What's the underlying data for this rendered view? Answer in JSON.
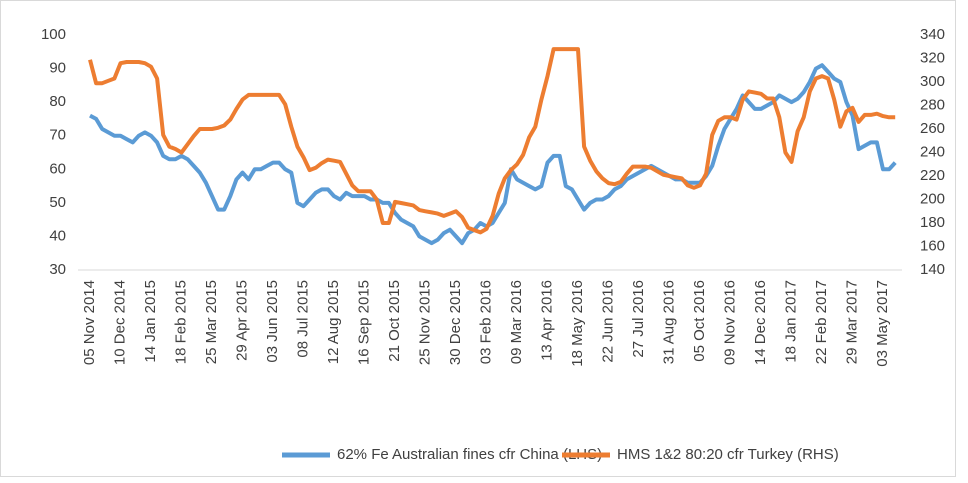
{
  "chart_data": {
    "type": "line",
    "categories": [
      "05 Nov 2014",
      null,
      null,
      null,
      null,
      "10 Dec 2014",
      null,
      null,
      null,
      null,
      "14 Jan 2015",
      null,
      null,
      null,
      null,
      "18 Feb 2015",
      null,
      null,
      null,
      null,
      "25 Mar 2015",
      null,
      null,
      null,
      null,
      "29 Apr 2015",
      null,
      null,
      null,
      null,
      "03 Jun 2015",
      null,
      null,
      null,
      null,
      "08 Jul 2015",
      null,
      null,
      null,
      null,
      "12 Aug 2015",
      null,
      null,
      null,
      null,
      "16 Sep 2015",
      null,
      null,
      null,
      null,
      "21 Oct 2015",
      null,
      null,
      null,
      null,
      "25 Nov 2015",
      null,
      null,
      null,
      null,
      "30 Dec 2015",
      null,
      null,
      null,
      null,
      "03 Feb 2016",
      null,
      null,
      null,
      null,
      "09 Mar 2016",
      null,
      null,
      null,
      null,
      "13 Apr 2016",
      null,
      null,
      null,
      null,
      "18 May 2016",
      null,
      null,
      null,
      null,
      "22 Jun 2016",
      null,
      null,
      null,
      null,
      "27 Jul 2016",
      null,
      null,
      null,
      null,
      "31 Aug 2016",
      null,
      null,
      null,
      null,
      "05 Oct 2016",
      null,
      null,
      null,
      null,
      "09 Nov 2016",
      null,
      null,
      null,
      null,
      "14 Dec 2016",
      null,
      null,
      null,
      null,
      "18 Jan 2017",
      null,
      null,
      null,
      null,
      "22 Feb 2017",
      null,
      null,
      null,
      null,
      "29 Mar 2017",
      null,
      null,
      null,
      null,
      "03 May 2017",
      null,
      null
    ],
    "series": [
      {
        "name": "62% Fe Australian fines cfr China (LHS)",
        "color": "#5b9bd5",
        "axis": "y",
        "values": [
          76,
          75,
          72,
          71,
          70,
          70,
          69,
          68,
          70,
          71,
          70,
          68,
          64,
          63,
          63,
          64,
          63,
          61,
          59,
          56,
          52,
          48,
          48,
          52,
          57,
          59,
          57,
          60,
          60,
          61,
          62,
          62,
          60,
          59,
          50,
          49,
          51,
          53,
          54,
          54,
          52,
          51,
          53,
          52,
          52,
          52,
          51,
          51,
          50,
          50,
          47,
          45,
          44,
          43,
          40,
          39,
          38,
          39,
          41,
          42,
          40,
          38,
          41,
          42,
          44,
          43,
          44,
          47,
          50,
          60,
          57,
          56,
          55,
          54,
          55,
          62,
          64,
          64,
          55,
          54,
          51,
          48,
          50,
          51,
          51,
          52,
          54,
          55,
          57,
          58,
          59,
          60,
          61,
          60,
          59,
          58,
          57,
          57,
          56,
          56,
          56,
          58,
          61,
          67,
          72,
          75,
          78,
          82,
          80,
          78,
          78,
          79,
          80,
          82,
          81,
          80,
          81,
          83,
          86,
          90,
          91,
          89,
          87,
          86,
          80,
          76,
          66,
          67,
          68,
          68,
          60,
          60,
          62
        ]
      },
      {
        "name": "HMS 1&2 80:20 cfr Turkey (RHS)",
        "color": "#ed7d31",
        "axis": "y2",
        "values": [
          319,
          299,
          299,
          301,
          303,
          316,
          317,
          317,
          317,
          316,
          313,
          303,
          255,
          245,
          243,
          240,
          247,
          254,
          260,
          260,
          260,
          261,
          263,
          268,
          277,
          285,
          289,
          289,
          289,
          289,
          289,
          289,
          281,
          262,
          245,
          236,
          225,
          227,
          231,
          234,
          233,
          232,
          222,
          212,
          207,
          207,
          207,
          200,
          180,
          180,
          198,
          197,
          196,
          195,
          191,
          190,
          189,
          188,
          186,
          188,
          190,
          185,
          176,
          174,
          172,
          175,
          186,
          205,
          218,
          225,
          230,
          238,
          253,
          262,
          285,
          305,
          328,
          328,
          328,
          328,
          328,
          245,
          233,
          224,
          218,
          214,
          213,
          215,
          222,
          228,
          228,
          228,
          227,
          224,
          221,
          220,
          219,
          218,
          212,
          210,
          212,
          222,
          255,
          267,
          270,
          270,
          268,
          285,
          292,
          291,
          290,
          286,
          286,
          270,
          240,
          232,
          258,
          270,
          292,
          303,
          305,
          303,
          285,
          262,
          275,
          278,
          266,
          272,
          272,
          273,
          271,
          270,
          270
        ]
      }
    ],
    "ylim": [
      30,
      100
    ],
    "yticks": [
      30,
      40,
      50,
      60,
      70,
      80,
      90,
      100
    ],
    "y2lim": [
      140,
      340
    ],
    "y2ticks": [
      140,
      160,
      180,
      200,
      220,
      240,
      260,
      280,
      300,
      320,
      340
    ],
    "grid": false,
    "legend": "bottom"
  }
}
